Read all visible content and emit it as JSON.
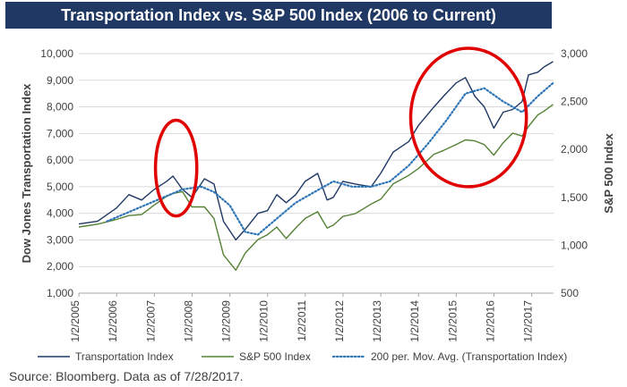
{
  "title": "Transportation Index vs. S&P 500 Index (2006 to Current)",
  "source_note": "Source: Bloomberg. Data as of 7/28/2017.",
  "colors": {
    "title_bg": "#1f3864",
    "transportation": "#1f3864",
    "sp500": "#548235",
    "moving_avg": "#2e75b6",
    "highlight_circle": "#e00000"
  },
  "chart_data": {
    "type": "line",
    "ylabel_left": "Dow Jones Transportation Index",
    "ylabel_right": "S&P 500 Index",
    "ylim_left": [
      1000,
      10000
    ],
    "ylim_right": [
      500,
      3000
    ],
    "yticks_left": [
      "1,000",
      "2,000",
      "3,000",
      "4,000",
      "5,000",
      "6,000",
      "7,000",
      "8,000",
      "9,000",
      "10,000"
    ],
    "yticks_right": [
      "500",
      "1,000",
      "1,500",
      "2,000",
      "2,500",
      "3,000"
    ],
    "x_range": [
      "2005-01-01",
      "2017-08-01"
    ],
    "xticks": [
      "1/2/2005",
      "1/2/2006",
      "1/2/2007",
      "1/2/2008",
      "1/2/2009",
      "1/2/2010",
      "1/2/2011",
      "1/2/2012",
      "1/2/2013",
      "1/2/2014",
      "1/2/2015",
      "1/2/2016",
      "1/2/2017"
    ],
    "legend_position": "bottom",
    "series": [
      {
        "name": "Transportation Index",
        "axis": "left",
        "style": "solid",
        "x": [
          "2005-01-01",
          "2005-07-01",
          "2006-01-01",
          "2006-05-01",
          "2006-09-01",
          "2007-01-01",
          "2007-05-01",
          "2007-07-01",
          "2007-10-01",
          "2008-01-01",
          "2008-05-01",
          "2008-08-01",
          "2008-11-01",
          "2009-03-01",
          "2009-06-01",
          "2009-10-01",
          "2010-01-01",
          "2010-04-01",
          "2010-07-01",
          "2010-10-01",
          "2011-01-01",
          "2011-05-01",
          "2011-08-01",
          "2011-10-01",
          "2012-01-01",
          "2012-05-01",
          "2012-10-01",
          "2013-01-01",
          "2013-05-01",
          "2013-10-01",
          "2014-01-01",
          "2014-06-01",
          "2014-09-01",
          "2015-01-01",
          "2015-04-01",
          "2015-07-01",
          "2015-10-01",
          "2016-01-01",
          "2016-04-01",
          "2016-07-01",
          "2016-10-01",
          "2016-12-01",
          "2017-03-01",
          "2017-05-01",
          "2017-07-28"
        ],
        "y": [
          3600,
          3700,
          4200,
          4700,
          4500,
          4900,
          5200,
          5400,
          4900,
          4600,
          5300,
          5100,
          3700,
          3000,
          3400,
          4000,
          4100,
          4700,
          4400,
          4700,
          5200,
          5500,
          4500,
          4600,
          5200,
          5100,
          5000,
          5500,
          6300,
          6700,
          7300,
          8000,
          8400,
          8900,
          9100,
          8400,
          8000,
          7200,
          7800,
          7900,
          8200,
          9200,
          9300,
          9500,
          9700
        ]
      },
      {
        "name": "S&P 500 Index",
        "axis": "right",
        "style": "solid",
        "x": [
          "2005-01-01",
          "2005-07-01",
          "2006-01-01",
          "2006-05-01",
          "2006-09-01",
          "2007-01-01",
          "2007-05-01",
          "2007-07-01",
          "2007-10-01",
          "2008-01-01",
          "2008-05-01",
          "2008-08-01",
          "2008-11-01",
          "2009-03-01",
          "2009-06-01",
          "2009-10-01",
          "2010-01-01",
          "2010-04-01",
          "2010-07-01",
          "2010-10-01",
          "2011-01-01",
          "2011-05-01",
          "2011-08-01",
          "2011-10-01",
          "2012-01-01",
          "2012-05-01",
          "2012-10-01",
          "2013-01-01",
          "2013-05-01",
          "2013-10-01",
          "2014-01-01",
          "2014-06-01",
          "2014-09-01",
          "2015-01-01",
          "2015-04-01",
          "2015-07-01",
          "2015-10-01",
          "2016-01-01",
          "2016-04-01",
          "2016-07-01",
          "2016-10-01",
          "2016-12-01",
          "2017-03-01",
          "2017-05-01",
          "2017-07-28"
        ],
        "y": [
          1190,
          1220,
          1270,
          1310,
          1320,
          1420,
          1510,
          1540,
          1560,
          1400,
          1400,
          1280,
          900,
          740,
          920,
          1060,
          1110,
          1190,
          1070,
          1180,
          1280,
          1350,
          1180,
          1210,
          1300,
          1330,
          1430,
          1480,
          1640,
          1730,
          1800,
          1950,
          1990,
          2050,
          2100,
          2090,
          2050,
          1940,
          2070,
          2170,
          2140,
          2240,
          2360,
          2400,
          2470
        ]
      },
      {
        "name": "200 per. Mov. Avg. (Transportation Index)",
        "axis": "left",
        "style": "dotted",
        "x": [
          "2005-10-01",
          "2006-04-01",
          "2006-10-01",
          "2007-04-01",
          "2007-10-01",
          "2008-04-01",
          "2008-08-01",
          "2009-01-01",
          "2009-06-01",
          "2009-10-01",
          "2010-04-01",
          "2010-10-01",
          "2011-04-01",
          "2011-10-01",
          "2012-04-01",
          "2012-10-01",
          "2013-04-01",
          "2013-10-01",
          "2014-04-01",
          "2014-10-01",
          "2015-04-01",
          "2015-10-01",
          "2016-04-01",
          "2016-10-01",
          "2017-03-01",
          "2017-07-28"
        ],
        "y": [
          3700,
          4000,
          4300,
          4600,
          4900,
          5000,
          4800,
          4300,
          3300,
          3200,
          3800,
          4400,
          4800,
          5200,
          5000,
          5000,
          5200,
          5800,
          6600,
          7500,
          8500,
          8700,
          8200,
          7800,
          8400,
          8900
        ]
      }
    ],
    "annotations": [
      {
        "type": "ellipse",
        "center": [
          "2007-08-01",
          5700
        ],
        "radius_days": 200,
        "radius_y": 1800
      },
      {
        "type": "ellipse",
        "center": [
          "2015-05-01",
          7600
        ],
        "radius_days": 560,
        "radius_y": 2600
      }
    ]
  }
}
